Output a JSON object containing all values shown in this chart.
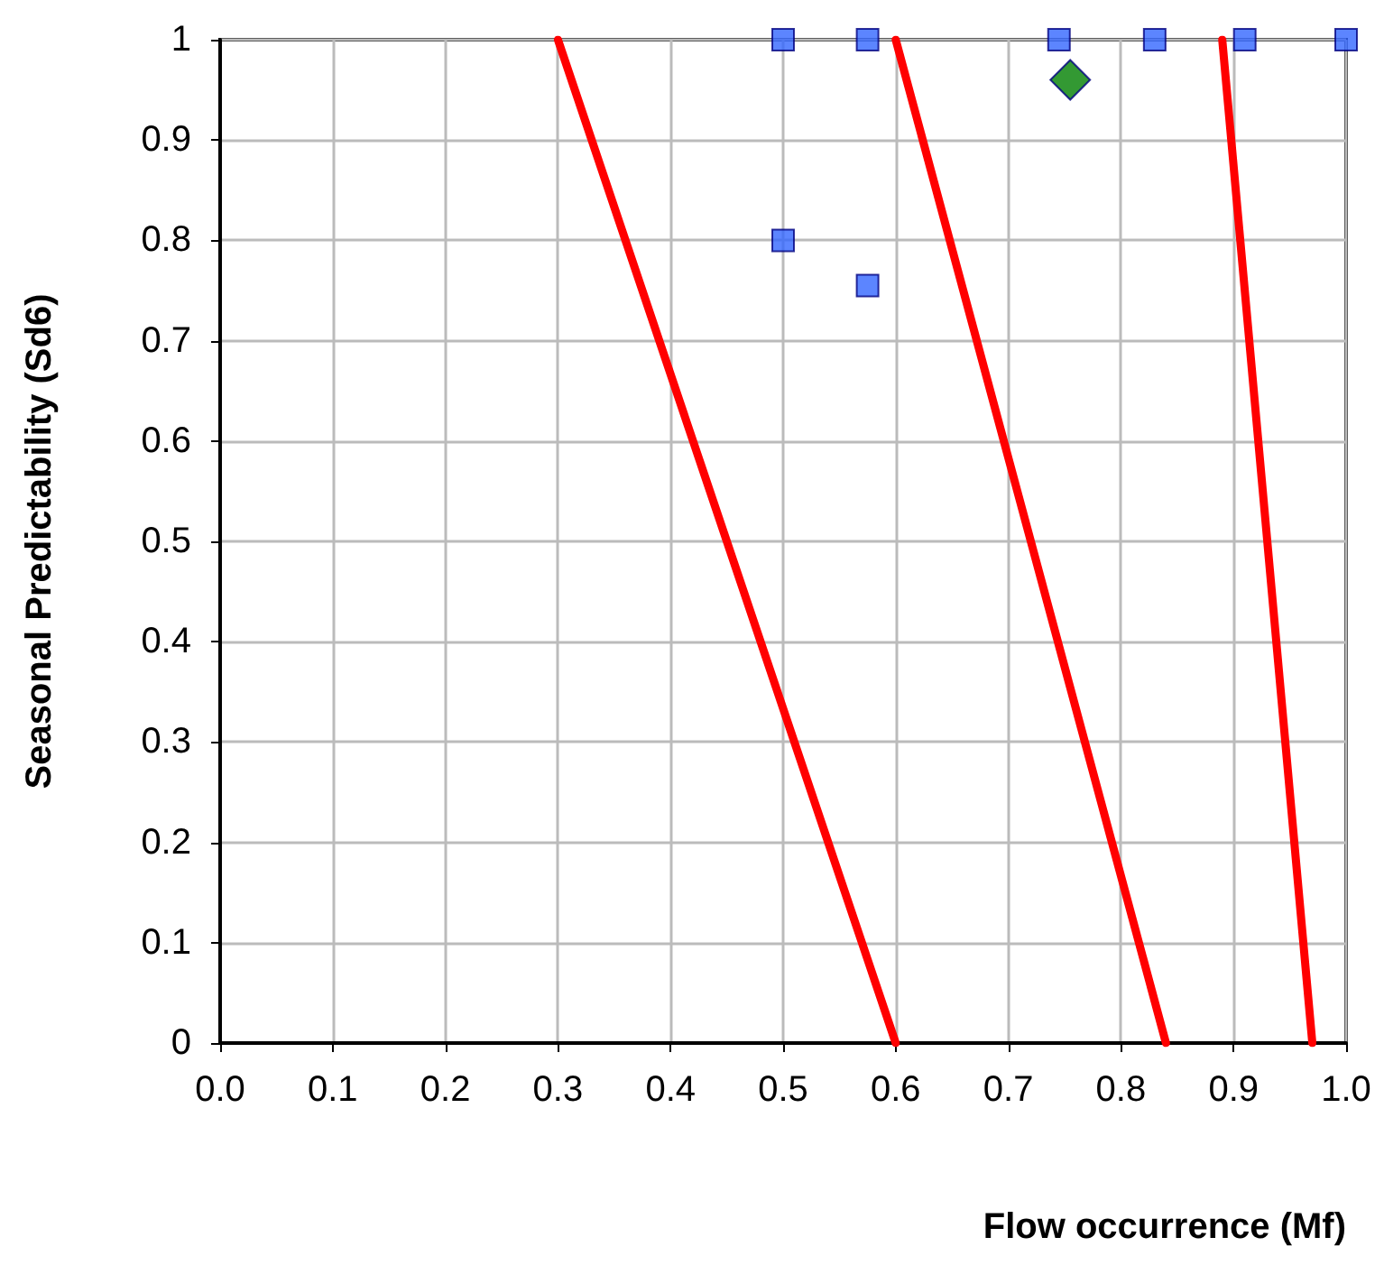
{
  "chart_data": {
    "type": "scatter",
    "xlabel": "Flow occurrence (Mf)",
    "ylabel": "Seasonal Predictability (Sd6)",
    "xlim": [
      0,
      1
    ],
    "ylim": [
      0,
      1
    ],
    "xticks": [
      {
        "value": 0,
        "label": "0.0"
      },
      0.1,
      0.2,
      0.3,
      0.4,
      0.5,
      0.6,
      0.7,
      0.8,
      0.9,
      {
        "value": 1,
        "label": "1.0"
      }
    ],
    "yticks": [
      0,
      0.1,
      0.2,
      0.3,
      0.4,
      0.5,
      0.6,
      0.7,
      0.8,
      0.9,
      1
    ],
    "grid": true,
    "series": [
      {
        "type": "line",
        "color": "#ff0000",
        "marker": "none",
        "line_style": "solid",
        "x": [
          0.3,
          0.6
        ],
        "values": [
          1,
          0
        ]
      },
      {
        "type": "line",
        "color": "#ff0000",
        "marker": "none",
        "line_style": "solid",
        "x": [
          0.6,
          0.84
        ],
        "values": [
          1,
          0
        ]
      },
      {
        "type": "line",
        "color": "#ff0000",
        "marker": "none",
        "line_style": "solid",
        "x": [
          0.89,
          0.97
        ],
        "values": [
          1,
          0
        ]
      },
      {
        "color": "#3366ff",
        "marker": "square",
        "x": [
          0.5,
          0.575,
          0.745,
          0.83,
          0.91,
          1.0,
          0.5,
          0.575
        ],
        "values": [
          1,
          1,
          1,
          1,
          1,
          1,
          0.8,
          0.755
        ]
      },
      {
        "color": "#008000",
        "marker": "diamond",
        "x": [
          0.755
        ],
        "values": [
          0.96
        ]
      }
    ]
  }
}
